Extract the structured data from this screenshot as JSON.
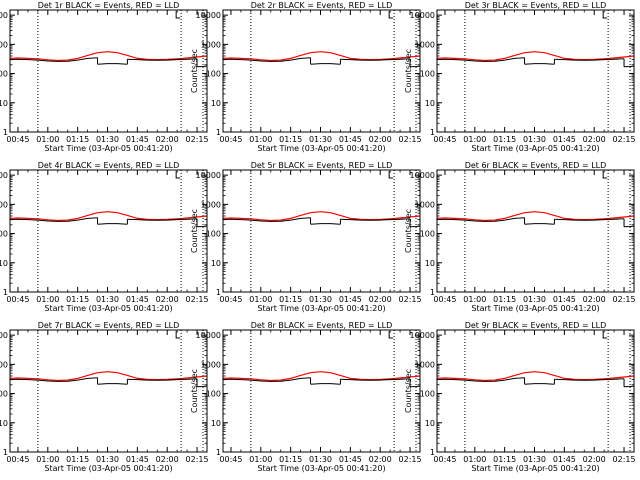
{
  "chart_data": [
    {
      "type": "line",
      "title": "Det 1r BLACK = Events, RED = LLD"
    },
    {
      "type": "line",
      "title": "Det 2r BLACK = Events, RED = LLD"
    },
    {
      "type": "line",
      "title": "Det 3r BLACK = Events, RED = LLD"
    },
    {
      "type": "line",
      "title": "Det 4r BLACK = Events, RED = LLD"
    },
    {
      "type": "line",
      "title": "Det 5r BLACK = Events, RED = LLD"
    },
    {
      "type": "line",
      "title": "Det 6r BLACK = Events, RED = LLD"
    },
    {
      "type": "line",
      "title": "Det 7r BLACK = Events, RED = LLD"
    },
    {
      "type": "line",
      "title": "Det 8r BLACK = Events, RED = LLD"
    },
    {
      "type": "line",
      "title": "Det 9r BLACK = Events, RED = LLD"
    }
  ],
  "shared": {
    "xlabel": "Start Time (03-Apr-05 00:41:20)",
    "ylabel": "Counts/sec",
    "xticks": [
      "00:45",
      "01:00",
      "01:15",
      "01:30",
      "01:45",
      "02:00",
      "02:15"
    ],
    "xtick_minutes": [
      0,
      15,
      30,
      45,
      60,
      75,
      90
    ],
    "xlim_minutes": [
      -4,
      95
    ],
    "yscale": "log",
    "ylim": [
      1,
      15000
    ],
    "yticks": [
      1,
      10,
      100,
      1000,
      10000
    ],
    "ytick_labels": [
      "1",
      "10",
      "100",
      "1000",
      "10000"
    ],
    "dotted_vlines_minutes": [
      10,
      82,
      93
    ],
    "marker_minute": 79.5,
    "series": [
      {
        "name": "Events",
        "color": "#000000"
      },
      {
        "name": "LLD",
        "color": "#ff0000"
      }
    ],
    "time_minutes": [
      -4,
      0,
      5,
      10,
      15,
      20,
      25,
      30,
      35,
      40,
      45,
      50,
      55,
      60,
      65,
      70,
      75,
      80,
      85,
      90,
      95
    ],
    "lld_values": [
      330,
      340,
      330,
      320,
      295,
      280,
      290,
      330,
      420,
      520,
      560,
      520,
      420,
      330,
      305,
      300,
      305,
      320,
      340,
      370,
      400
    ],
    "events_segments": [
      {
        "t": [
          -4,
          0,
          5,
          10,
          15,
          20,
          25,
          30,
          35,
          40
        ],
        "v": [
          300,
          310,
          300,
          290,
          270,
          260,
          265,
          290,
          330,
          350
        ]
      },
      {
        "t": [
          40,
          45,
          50,
          55
        ],
        "v": [
          210,
          220,
          220,
          210
        ]
      },
      {
        "t": [
          55,
          60,
          65,
          70,
          75,
          80,
          85,
          90
        ],
        "v": [
          310,
          300,
          290,
          285,
          290,
          300,
          310,
          320
        ]
      },
      {
        "t": [
          90,
          93,
          95
        ],
        "v": [
          170,
          175,
          180
        ]
      }
    ]
  }
}
